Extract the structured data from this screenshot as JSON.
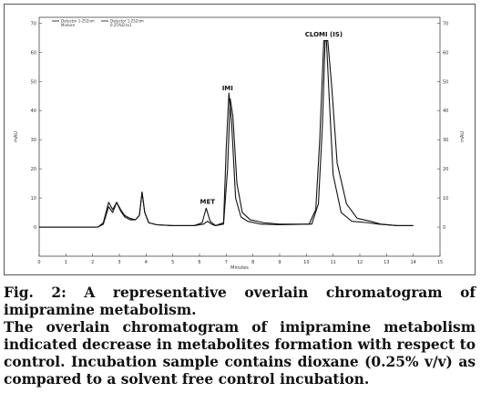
{
  "chart_data": {
    "type": "line",
    "xlabel": "Minutes",
    "ylabel_left": "mAU",
    "ylabel_right": "mAU",
    "xlim": [
      0,
      15
    ],
    "ylim": [
      -10,
      72
    ],
    "x_ticks": [
      0,
      1,
      2,
      3,
      4,
      5,
      6,
      7,
      8,
      9,
      10,
      11,
      12,
      13,
      14,
      15
    ],
    "y_ticks": [
      0,
      10,
      20,
      30,
      40,
      50,
      60,
      70
    ],
    "grid": false,
    "legend_position": "top-left",
    "legend": [
      {
        "line1": "Detector 1-252nm",
        "line2": "Mixture"
      },
      {
        "line1": "Detector 1-252nm",
        "line2": "0.25%D.tx1"
      }
    ],
    "peak_labels": [
      {
        "text": "MET",
        "x": 6.3,
        "y": 8
      },
      {
        "text": "IMI",
        "x": 7.05,
        "y": 47
      },
      {
        "text": "CLOMI (IS)",
        "x": 10.65,
        "y": 65.5
      }
    ],
    "series": [
      {
        "points": [
          [
            0,
            0
          ],
          [
            2.2,
            0
          ],
          [
            2.4,
            1.5
          ],
          [
            2.6,
            8.5
          ],
          [
            2.75,
            6
          ],
          [
            2.9,
            8.5
          ],
          [
            3.05,
            5.5
          ],
          [
            3.2,
            3.5
          ],
          [
            3.4,
            2.5
          ],
          [
            3.6,
            2.5
          ],
          [
            3.75,
            4
          ],
          [
            3.85,
            12
          ],
          [
            3.95,
            5
          ],
          [
            4.1,
            1.5
          ],
          [
            4.4,
            0.8
          ],
          [
            5,
            0.5
          ],
          [
            5.8,
            0.5
          ],
          [
            6.1,
            1.5
          ],
          [
            6.25,
            6.5
          ],
          [
            6.4,
            2
          ],
          [
            6.6,
            0.5
          ],
          [
            6.9,
            1.5
          ],
          [
            7.0,
            27
          ],
          [
            7.1,
            46
          ],
          [
            7.2,
            36
          ],
          [
            7.35,
            10
          ],
          [
            7.55,
            3.5
          ],
          [
            7.8,
            2
          ],
          [
            8.3,
            1
          ],
          [
            9,
            0.8
          ],
          [
            10.1,
            1
          ],
          [
            10.35,
            6
          ],
          [
            10.5,
            30
          ],
          [
            10.65,
            64
          ],
          [
            10.75,
            64
          ],
          [
            10.85,
            45
          ],
          [
            11.0,
            18
          ],
          [
            11.3,
            5
          ],
          [
            11.7,
            2
          ],
          [
            12.3,
            1.5
          ],
          [
            12.7,
            1
          ],
          [
            13.4,
            0.5
          ],
          [
            14,
            0.5
          ]
        ]
      },
      {
        "points": [
          [
            0,
            0
          ],
          [
            2.2,
            0
          ],
          [
            2.4,
            1
          ],
          [
            2.6,
            7
          ],
          [
            2.75,
            5
          ],
          [
            2.9,
            8.5
          ],
          [
            3.05,
            6
          ],
          [
            3.2,
            4
          ],
          [
            3.4,
            3
          ],
          [
            3.6,
            2.5
          ],
          [
            3.75,
            4
          ],
          [
            3.85,
            12
          ],
          [
            3.95,
            5
          ],
          [
            4.1,
            1.5
          ],
          [
            4.4,
            0.8
          ],
          [
            5,
            0.5
          ],
          [
            5.8,
            0.5
          ],
          [
            6.15,
            1
          ],
          [
            6.3,
            2
          ],
          [
            6.45,
            1
          ],
          [
            6.6,
            0.5
          ],
          [
            6.9,
            1
          ],
          [
            7.05,
            20
          ],
          [
            7.15,
            44
          ],
          [
            7.25,
            38
          ],
          [
            7.4,
            15
          ],
          [
            7.6,
            5
          ],
          [
            7.9,
            2.5
          ],
          [
            8.4,
            1.5
          ],
          [
            9,
            1
          ],
          [
            10.2,
            1
          ],
          [
            10.45,
            8
          ],
          [
            10.6,
            35
          ],
          [
            10.7,
            64
          ],
          [
            10.8,
            64
          ],
          [
            10.95,
            48
          ],
          [
            11.15,
            22
          ],
          [
            11.5,
            8
          ],
          [
            11.9,
            3
          ],
          [
            12.4,
            2
          ],
          [
            12.8,
            1
          ],
          [
            13.4,
            0.5
          ],
          [
            14,
            0.5
          ]
        ]
      }
    ]
  },
  "caption": {
    "title": "Fig. 2: A representative overlain chromatogram of imipramine metabolism.",
    "body": "The overlain chromatogram of imipramine metabolism indicated decrease in metabolites formation with respect to control. Incubation sample contains dioxane (0.25% v/v) as compared to a solvent free control incubation."
  }
}
